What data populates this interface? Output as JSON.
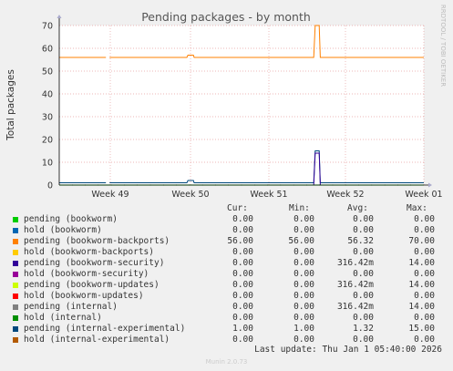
{
  "chart_data": {
    "type": "line",
    "title": "Pending packages - by month",
    "ylabel": "Total packages",
    "side_label": "RRDTOOL / TOBI OETIKER",
    "ylim": [
      0,
      70
    ],
    "yticks": [
      0,
      10,
      20,
      30,
      40,
      50,
      60,
      70
    ],
    "xlim": [
      0,
      100
    ],
    "xticks": [
      {
        "label": "Week 49",
        "pos": 14
      },
      {
        "label": "Week 50",
        "pos": 36
      },
      {
        "label": "Week 51",
        "pos": 57.5
      },
      {
        "label": "Week 52",
        "pos": 78.5
      },
      {
        "label": "Week 01",
        "pos": 100
      }
    ],
    "series": [
      {
        "name": "pending (bookworm-backports)",
        "color": "#ff8000",
        "points": [
          [
            0,
            56
          ],
          [
            12.8,
            56
          ],
          [
            12.8,
            null
          ],
          [
            13.8,
            null
          ],
          [
            13.8,
            56
          ],
          [
            35,
            56
          ],
          [
            35.3,
            57
          ],
          [
            36.8,
            57
          ],
          [
            37,
            56
          ],
          [
            69.8,
            56
          ],
          [
            70.2,
            70
          ],
          [
            71.3,
            70
          ],
          [
            71.6,
            56
          ],
          [
            100,
            56
          ]
        ]
      },
      {
        "name": "pending (internal-experimental)",
        "color": "#00487d",
        "points": [
          [
            0,
            1
          ],
          [
            12.8,
            1
          ],
          [
            12.8,
            null
          ],
          [
            13.8,
            null
          ],
          [
            13.8,
            1
          ],
          [
            35,
            1
          ],
          [
            35.3,
            2
          ],
          [
            36.8,
            2
          ],
          [
            37,
            1
          ],
          [
            69.8,
            1
          ],
          [
            70.2,
            15
          ],
          [
            71.3,
            15
          ],
          [
            71.6,
            1
          ],
          [
            100,
            1
          ]
        ]
      },
      {
        "name": "pending (bookworm-security)",
        "color": "#330099",
        "points": [
          [
            0,
            0
          ],
          [
            69.8,
            0
          ],
          [
            70.2,
            14
          ],
          [
            71.3,
            14
          ],
          [
            71.6,
            0
          ],
          [
            100,
            0
          ]
        ]
      },
      {
        "name": "pending (bookworm)",
        "color": "#00cc00",
        "points": [
          [
            0,
            0
          ],
          [
            100,
            0
          ]
        ]
      }
    ],
    "legend_headers": [
      "Cur:",
      "Min:",
      "Avg:",
      "Max:"
    ],
    "legend": [
      {
        "name": "pending (bookworm)",
        "color": "#00cc00",
        "cur": "0.00",
        "min": "0.00",
        "avg": "0.00",
        "max": "0.00"
      },
      {
        "name": "hold (bookworm)",
        "color": "#0066b3",
        "cur": "0.00",
        "min": "0.00",
        "avg": "0.00",
        "max": "0.00"
      },
      {
        "name": "pending (bookworm-backports)",
        "color": "#ff8000",
        "cur": "56.00",
        "min": "56.00",
        "avg": "56.32",
        "max": "70.00"
      },
      {
        "name": "hold (bookworm-backports)",
        "color": "#ffcc00",
        "cur": "0.00",
        "min": "0.00",
        "avg": "0.00",
        "max": "0.00"
      },
      {
        "name": "pending (bookworm-security)",
        "color": "#330099",
        "cur": "0.00",
        "min": "0.00",
        "avg": "316.42m",
        "max": "14.00"
      },
      {
        "name": "hold (bookworm-security)",
        "color": "#990099",
        "cur": "0.00",
        "min": "0.00",
        "avg": "0.00",
        "max": "0.00"
      },
      {
        "name": "pending (bookworm-updates)",
        "color": "#ccff00",
        "cur": "0.00",
        "min": "0.00",
        "avg": "316.42m",
        "max": "14.00"
      },
      {
        "name": "hold (bookworm-updates)",
        "color": "#ff0000",
        "cur": "0.00",
        "min": "0.00",
        "avg": "0.00",
        "max": "0.00"
      },
      {
        "name": "pending (internal)",
        "color": "#808080",
        "cur": "0.00",
        "min": "0.00",
        "avg": "316.42m",
        "max": "14.00"
      },
      {
        "name": "hold (internal)",
        "color": "#008f00",
        "cur": "0.00",
        "min": "0.00",
        "avg": "0.00",
        "max": "0.00"
      },
      {
        "name": "pending (internal-experimental)",
        "color": "#00487d",
        "cur": "1.00",
        "min": "1.00",
        "avg": "1.32",
        "max": "15.00"
      },
      {
        "name": "hold (internal-experimental)",
        "color": "#b35a00",
        "cur": "0.00",
        "min": "0.00",
        "avg": "0.00",
        "max": "0.00"
      }
    ],
    "last_update": "Last update: Thu Jan  1 05:40:00 2026",
    "version": "Munin 2.0.73"
  }
}
